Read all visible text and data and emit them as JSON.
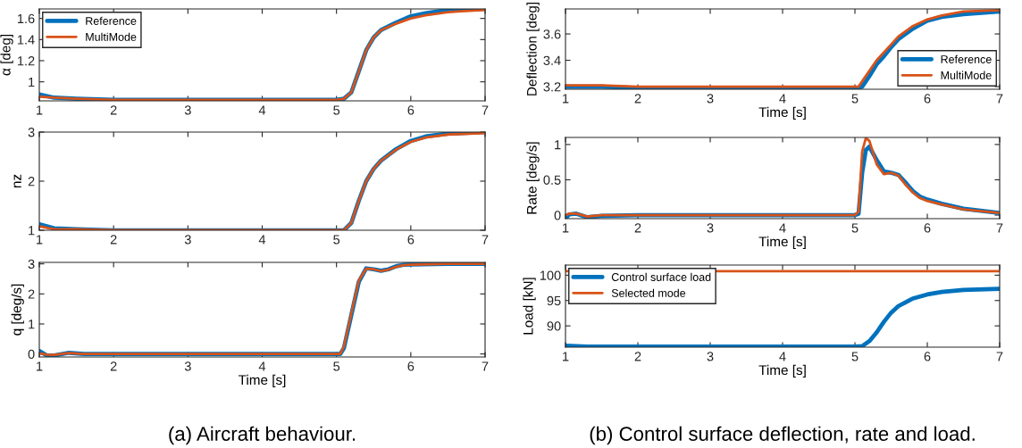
{
  "chart_data": [
    {
      "type": "line",
      "ylabel": "α [deg]",
      "xlim": [
        1,
        7
      ],
      "xticks": [
        1,
        2,
        3,
        4,
        5,
        6,
        7
      ],
      "ylim": [
        0.82,
        1.69
      ],
      "yticks": [
        1,
        1.2,
        1.4,
        1.6
      ],
      "legend": "top left",
      "grid": false,
      "series": [
        {
          "name": "Reference",
          "color": "#0072bd",
          "x": [
            1,
            1.2,
            1.5,
            2,
            5,
            5.1,
            5.2,
            5.3,
            5.4,
            5.5,
            5.6,
            5.8,
            6,
            6.2,
            6.5,
            7
          ],
          "values": [
            0.88,
            0.85,
            0.84,
            0.83,
            0.83,
            0.84,
            0.9,
            1.1,
            1.3,
            1.42,
            1.49,
            1.56,
            1.62,
            1.65,
            1.68,
            1.69
          ]
        },
        {
          "name": "MultiMode",
          "color": "#d95319",
          "x": [
            1,
            1.2,
            1.5,
            2,
            5,
            5.1,
            5.2,
            5.3,
            5.4,
            5.5,
            5.6,
            5.8,
            6,
            6.2,
            6.5,
            7
          ],
          "values": [
            0.86,
            0.85,
            0.84,
            0.83,
            0.83,
            0.84,
            0.9,
            1.1,
            1.3,
            1.42,
            1.49,
            1.55,
            1.6,
            1.63,
            1.66,
            1.68
          ]
        }
      ]
    },
    {
      "type": "line",
      "ylabel": "nz",
      "xlim": [
        1,
        7
      ],
      "xticks": [
        1,
        2,
        3,
        4,
        5,
        6,
        7
      ],
      "ylim": [
        1,
        3
      ],
      "yticks": [
        1,
        2,
        3
      ],
      "grid": false,
      "series": [
        {
          "color": "#0072bd",
          "x": [
            1,
            1.2,
            1.5,
            2,
            5,
            5.1,
            5.2,
            5.3,
            5.4,
            5.5,
            5.6,
            5.8,
            6,
            6.2,
            6.5,
            7
          ],
          "values": [
            1.12,
            1.04,
            1.02,
            1.0,
            1.0,
            1.0,
            1.15,
            1.6,
            2.0,
            2.25,
            2.42,
            2.65,
            2.82,
            2.91,
            2.97,
            3.0
          ]
        },
        {
          "color": "#d95319",
          "x": [
            1,
            1.2,
            1.5,
            2,
            5,
            5.1,
            5.2,
            5.3,
            5.4,
            5.5,
            5.6,
            5.8,
            6,
            6.2,
            6.5,
            7
          ],
          "values": [
            1.08,
            1.02,
            1.02,
            1.0,
            1.0,
            1.0,
            1.15,
            1.6,
            2.0,
            2.25,
            2.42,
            2.64,
            2.8,
            2.89,
            2.95,
            2.98
          ]
        }
      ]
    },
    {
      "type": "line",
      "ylabel": "q [deg/s]",
      "xlabel": "Time [s]",
      "xlim": [
        1,
        7
      ],
      "xticks": [
        1,
        2,
        3,
        4,
        5,
        6,
        7
      ],
      "ylim": [
        -0.1,
        3.05
      ],
      "yticks": [
        0,
        1,
        2,
        3
      ],
      "grid": false,
      "annotations": [
        "(a) Aircraft behaviour."
      ],
      "series": [
        {
          "color": "#0072bd",
          "x": [
            1,
            1.1,
            1.2,
            1.4,
            1.6,
            2,
            5,
            5.05,
            5.1,
            5.2,
            5.3,
            5.4,
            5.5,
            5.6,
            5.7,
            5.8,
            5.9,
            6,
            6.5,
            7
          ],
          "values": [
            0.1,
            -0.05,
            -0.05,
            0.04,
            0.0,
            0,
            0,
            0,
            0.2,
            1.3,
            2.4,
            2.85,
            2.82,
            2.77,
            2.82,
            2.92,
            2.97,
            2.98,
            3.0,
            3.0
          ]
        },
        {
          "color": "#d95319",
          "x": [
            1,
            1.1,
            1.2,
            1.4,
            1.6,
            2,
            5,
            5.05,
            5.1,
            5.2,
            5.3,
            5.4,
            5.5,
            5.6,
            5.7,
            5.8,
            5.9,
            6,
            6.5,
            7
          ],
          "values": [
            0.02,
            -0.02,
            -0.03,
            0.03,
            0.0,
            0,
            0,
            0,
            0.25,
            1.35,
            2.45,
            2.84,
            2.82,
            2.76,
            2.81,
            2.9,
            2.96,
            2.97,
            3.0,
            3.0
          ]
        }
      ]
    },
    {
      "type": "line",
      "ylabel": "Deflection [deg]",
      "xlabel": "Time [s]",
      "xlim": [
        1,
        7
      ],
      "xticks": [
        1,
        2,
        3,
        4,
        5,
        6,
        7
      ],
      "ylim": [
        3.18,
        3.79
      ],
      "yticks": [
        3.2,
        3.4,
        3.6
      ],
      "legend": "bottom right",
      "grid": false,
      "series": [
        {
          "name": "Reference",
          "color": "#0072bd",
          "x": [
            1,
            1.5,
            2,
            5,
            5.05,
            5.1,
            5.2,
            5.3,
            5.4,
            5.5,
            5.6,
            5.8,
            6,
            6.2,
            6.5,
            7
          ],
          "values": [
            3.2,
            3.2,
            3.19,
            3.19,
            3.19,
            3.2,
            3.28,
            3.37,
            3.43,
            3.5,
            3.56,
            3.64,
            3.7,
            3.73,
            3.75,
            3.77
          ]
        },
        {
          "name": "MultiMode",
          "color": "#d95319",
          "x": [
            1,
            1.5,
            2,
            5,
            5.05,
            5.1,
            5.2,
            5.3,
            5.4,
            5.5,
            5.6,
            5.8,
            6,
            6.2,
            6.5,
            7
          ],
          "values": [
            3.21,
            3.21,
            3.2,
            3.2,
            3.2,
            3.24,
            3.32,
            3.4,
            3.46,
            3.52,
            3.58,
            3.66,
            3.71,
            3.74,
            3.77,
            3.78
          ]
        }
      ]
    },
    {
      "type": "line",
      "ylabel": "Rate [deg/s]",
      "xlabel": "Time [s]",
      "xlim": [
        1,
        7
      ],
      "xticks": [
        1,
        2,
        3,
        4,
        5,
        6,
        7
      ],
      "ylim": [
        -0.05,
        1.1
      ],
      "yticks": [
        0,
        0.5,
        1
      ],
      "grid": false,
      "series": [
        {
          "color": "#0072bd",
          "x": [
            1,
            1.05,
            1.15,
            1.3,
            1.5,
            2,
            5,
            5.05,
            5.1,
            5.15,
            5.2,
            5.3,
            5.4,
            5.5,
            5.6,
            5.7,
            5.8,
            5.9,
            6,
            6.2,
            6.5,
            7
          ],
          "values": [
            -0.05,
            0.01,
            0.02,
            -0.03,
            -0.01,
            0,
            0,
            0.02,
            0.6,
            0.92,
            0.97,
            0.78,
            0.62,
            0.6,
            0.57,
            0.46,
            0.34,
            0.26,
            0.22,
            0.16,
            0.09,
            0.03
          ]
        },
        {
          "color": "#d95319",
          "x": [
            1,
            1.05,
            1.15,
            1.3,
            1.5,
            2,
            5,
            5.05,
            5.1,
            5.15,
            5.2,
            5.3,
            5.4,
            5.5,
            5.6,
            5.7,
            5.8,
            5.9,
            6,
            6.2,
            6.5,
            7
          ],
          "values": [
            0.0,
            0.02,
            0.02,
            -0.02,
            0.0,
            0,
            0,
            0.05,
            0.9,
            1.09,
            1.05,
            0.72,
            0.58,
            0.6,
            0.56,
            0.43,
            0.32,
            0.24,
            0.2,
            0.15,
            0.08,
            0.03
          ]
        }
      ]
    },
    {
      "type": "line",
      "ylabel": "Load [kN]",
      "xlabel": "Time [s]",
      "xlim": [
        1,
        7
      ],
      "xticks": [
        1,
        2,
        3,
        4,
        5,
        6,
        7
      ],
      "ylim": [
        85.8,
        102
      ],
      "yticks": [
        90,
        95,
        100
      ],
      "legend": "top left",
      "grid": false,
      "annotations": [
        "(b) Control surface deflection, rate and load."
      ],
      "series": [
        {
          "name": "Control surface load",
          "color": "#0072bd",
          "x": [
            1,
            1.3,
            2,
            5,
            5.1,
            5.2,
            5.3,
            5.4,
            5.5,
            5.6,
            5.8,
            6,
            6.2,
            6.5,
            7
          ],
          "values": [
            86.1,
            85.9,
            85.9,
            85.9,
            86,
            87,
            88.7,
            90.8,
            92.6,
            93.9,
            95.4,
            96.2,
            96.7,
            97.1,
            97.3
          ]
        },
        {
          "name": "Selected mode",
          "color": "#d95319",
          "x": [
            1,
            7
          ],
          "values": [
            100.8,
            100.8
          ]
        }
      ]
    }
  ]
}
